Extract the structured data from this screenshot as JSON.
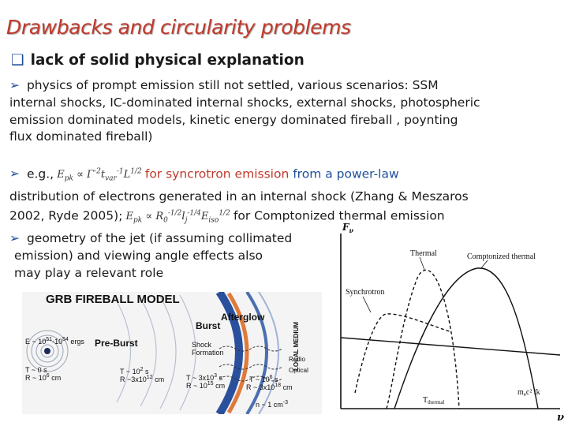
{
  "slide": {
    "title": "Drawbacks and circularity problems",
    "heading": "lack of solid physical explanation",
    "bullet1": [
      "physics of prompt emission still not settled, various scenarios: SSM",
      "internal shocks, IC-dominated internal shocks, external shocks, photospheric",
      "emission dominated models, kinetic energy dominated fireball , poynting",
      "flux dominated fireball)"
    ],
    "bullet2": {
      "lead": "e.g.,",
      "after1": "for",
      "syncrotron": "syncrotron emission",
      "after1b": "from a power-law",
      "line2": "distribution of electrons generated in an internal shock (Zhang & Meszaros",
      "line3a": "2002, Ryde 2005);",
      "line3b": "for Comptonized thermal emission"
    },
    "bullet3": [
      "geometry of the jet (if assuming collimated",
      "emission) and viewing angle effects also",
      "may play a relevant role"
    ]
  },
  "grb_figure": {
    "title": "GRB FIREBALL MODEL",
    "labels": {
      "afterglow": "Afterglow",
      "burst": "Burst",
      "preburst": "Pre-Burst",
      "shock_formation_1": "Shock",
      "shock_formation_2": "Formation",
      "local_medium": "LOCAL MEDIUM",
      "e_energy": "E ~ 10",
      "e_exp": "51",
      "e_mid": "-10",
      "e_exp2": "54",
      "e_unit": " ergs",
      "t0": "T ~ 0 s",
      "r0": "R ~ 10",
      "r0_exp": "6",
      "r0_unit": " cm",
      "t1": "T ~ 10",
      "t1_exp": "2",
      "t1_unit": " s",
      "r1": "R ~3x10",
      "r1_exp": "12",
      "r1_unit": " cm",
      "t2": "T ~ 3x10",
      "t2_exp": "3",
      "t2_unit": " s",
      "r2": "R ~ 10",
      "r2_exp": "15",
      "r2_unit": " cm",
      "t3": "T ~ 10",
      "t3_exp": "6",
      "t3_unit": " s",
      "r3": "R ~ 3x10",
      "r3_exp": "18",
      "r3_unit": " cm",
      "radio": "Radio",
      "optical": "Optical",
      "n": "n ~ 1 cm",
      "n_exp": "-3"
    }
  },
  "spectrum_figure": {
    "y_axis": "F",
    "y_sub": "ν",
    "x_axis": "ν",
    "thermal": "Thermal",
    "comptonized": "Comptonized thermal",
    "synchrotron": "Synchrotron",
    "t_thermal": "T",
    "t_thermal_sub": "thermal",
    "mec2": "m",
    "mec2_sub": "e",
    "mec2_rest": "c² /k"
  }
}
